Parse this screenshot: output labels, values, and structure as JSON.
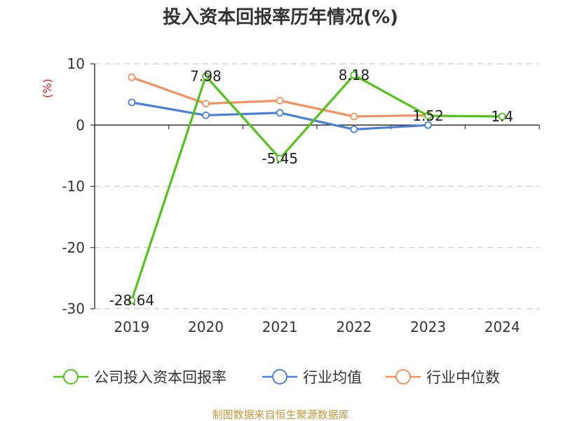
{
  "chart_data": {
    "type": "line",
    "title": "投入资本回报率历年情况(%)",
    "ylabel": "(%)",
    "categories": [
      "2019",
      "2020",
      "2021",
      "2022",
      "2023",
      "2024"
    ],
    "ylim": [
      -30,
      10
    ],
    "yticks": [
      10,
      0,
      -10,
      -20,
      -30
    ],
    "grid": true,
    "legend_position": "bottom",
    "series": [
      {
        "name": "公司投入资本回报率",
        "color": "#52c41a",
        "values": [
          -28.64,
          7.98,
          -5.45,
          8.18,
          1.52,
          1.4
        ],
        "data_labels": [
          "-28.64",
          "7.98",
          "-5.45",
          "8.18",
          "1.52",
          "1.4"
        ]
      },
      {
        "name": "行业均值",
        "color": "#4a7fdc",
        "values": [
          3.7,
          1.6,
          2.0,
          -0.7,
          0.0,
          null
        ]
      },
      {
        "name": "行业中位数",
        "color": "#f4915e",
        "values": [
          7.8,
          3.5,
          4.0,
          1.4,
          1.6,
          null
        ]
      }
    ]
  },
  "source": {
    "text": "制图数据来自恒生聚源数据库",
    "color": "#c8963c"
  },
  "ylabel_color": "#e31a1c"
}
